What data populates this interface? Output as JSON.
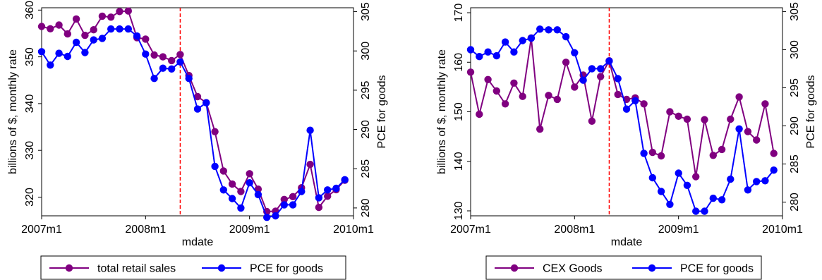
{
  "colors": {
    "series_a": "#800080",
    "series_b": "#0000ff",
    "vline": "#ff0000"
  },
  "chart_data": [
    {
      "type": "line",
      "xlabel": "mdate",
      "ylabel": "billions of $, monthly rate",
      "y2label": "PCE for goods",
      "xticks": [
        "2007m1",
        "2008m1",
        "2009m1",
        "2010m1"
      ],
      "xlim": [
        0,
        36
      ],
      "ylim": [
        316,
        360.5
      ],
      "yticks": [
        320,
        330,
        340,
        350,
        360
      ],
      "y2lim": [
        279,
        305.5
      ],
      "y2ticks": [
        280,
        285,
        290,
        295,
        300,
        305
      ],
      "vline_x": 16,
      "legend_position": "bottom",
      "series": [
        {
          "name": "total retail sales",
          "axis": "left",
          "x": [
            0,
            1,
            2,
            3,
            4,
            5,
            6,
            7,
            8,
            9,
            10,
            11,
            12,
            13,
            14,
            15,
            16,
            17,
            18,
            19,
            20,
            21,
            22,
            23,
            24,
            25,
            26,
            27,
            28,
            29,
            30,
            31,
            32,
            33,
            34,
            35
          ],
          "values": [
            356.5,
            356,
            356.8,
            354.9,
            358.1,
            354.6,
            355.8,
            358.7,
            358.5,
            359.7,
            359.8,
            354.1,
            353.8,
            350.4,
            350,
            349.2,
            350.5,
            346,
            341.5,
            340.2,
            334,
            325.6,
            322.8,
            321.2,
            325,
            321.7,
            316.9,
            317,
            319.5,
            320.1,
            322,
            327,
            317.8,
            320.2,
            321.6,
            323.6
          ]
        },
        {
          "name": "PCE for goods",
          "axis": "right",
          "x": [
            0,
            1,
            2,
            3,
            4,
            5,
            6,
            7,
            8,
            9,
            10,
            11,
            12,
            13,
            14,
            15,
            16,
            17,
            18,
            19,
            20,
            21,
            22,
            23,
            24,
            25,
            26,
            27,
            28,
            29,
            30,
            31,
            32,
            33,
            34,
            35
          ],
          "values": [
            299.9,
            298.2,
            299.7,
            299.3,
            301.1,
            299.8,
            301.4,
            301.6,
            302.8,
            302.8,
            302.8,
            301.9,
            299.6,
            296.5,
            297.8,
            297.7,
            298.6,
            296.5,
            292.6,
            293.4,
            285.3,
            282.3,
            281.2,
            280,
            283.2,
            281.7,
            278.8,
            279,
            280.4,
            280.4,
            282.1,
            289.9,
            281.3,
            282.3,
            282.5,
            283.6
          ]
        }
      ]
    },
    {
      "type": "line",
      "xlabel": "mdate",
      "ylabel": "billions of $, monthly rate",
      "y2label": "PCE for goods",
      "xticks": [
        "2007m1",
        "2008m1",
        "2009m1",
        "2010m1"
      ],
      "xlim": [
        0,
        36
      ],
      "ylim": [
        129,
        171
      ],
      "yticks": [
        130,
        140,
        150,
        160,
        170
      ],
      "y2lim": [
        278.2,
        305.5
      ],
      "y2ticks": [
        280,
        285,
        290,
        295,
        300,
        305
      ],
      "vline_x": 16,
      "legend_position": "bottom",
      "series": [
        {
          "name": "CEX Goods",
          "axis": "left",
          "x": [
            0,
            1,
            2,
            3,
            4,
            5,
            6,
            7,
            8,
            9,
            10,
            11,
            12,
            13,
            14,
            15,
            16,
            17,
            18,
            19,
            20,
            21,
            22,
            23,
            24,
            25,
            26,
            27,
            28,
            29,
            30,
            31,
            32,
            33,
            34,
            35
          ],
          "values": [
            158,
            149.5,
            156.5,
            154.2,
            151.6,
            155.8,
            153.1,
            164.9,
            146.5,
            153.3,
            152.5,
            160,
            155,
            157.4,
            148.1,
            157.1,
            160.3,
            153.5,
            152.5,
            152.8,
            151.6,
            141.8,
            141.1,
            150,
            149.1,
            148.5,
            136.9,
            148.4,
            141.2,
            142.4,
            148.5,
            153,
            146,
            144.3,
            151.6,
            141.6
          ]
        },
        {
          "name": "PCE for goods",
          "axis": "right",
          "x": [
            0,
            1,
            2,
            3,
            4,
            5,
            6,
            7,
            8,
            9,
            10,
            11,
            12,
            13,
            14,
            15,
            16,
            17,
            18,
            19,
            20,
            21,
            22,
            23,
            24,
            25,
            26,
            27,
            28,
            29,
            30,
            31,
            32,
            33,
            34,
            35
          ],
          "values": [
            300,
            299.1,
            299.7,
            299.2,
            301,
            299.7,
            301.2,
            301.5,
            302.7,
            302.6,
            302.6,
            301.7,
            299.6,
            296,
            297.5,
            297.5,
            298.5,
            296.2,
            292.2,
            293.3,
            286.4,
            283.2,
            281.4,
            279.7,
            283.8,
            282.2,
            278.8,
            278.8,
            280.5,
            280.3,
            283,
            289.6,
            281.6,
            282.7,
            282.8,
            284.2
          ]
        }
      ]
    }
  ]
}
